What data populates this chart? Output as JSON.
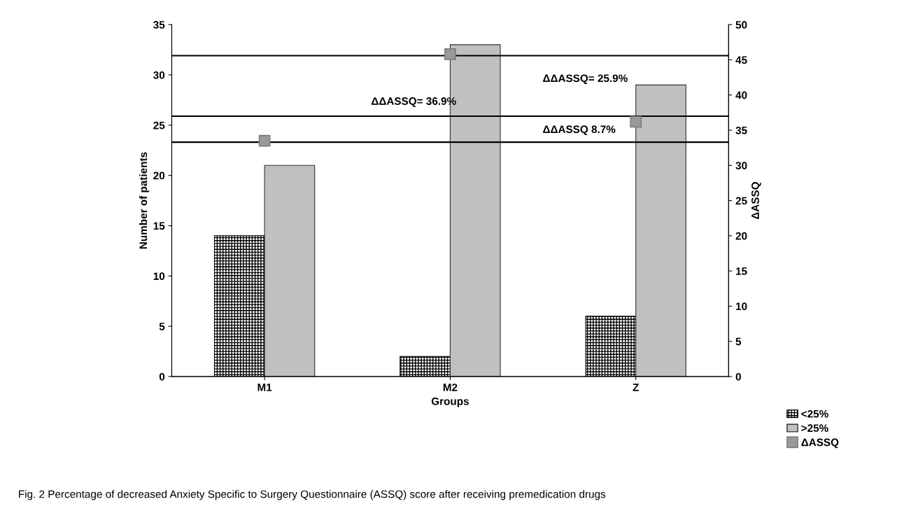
{
  "chart_data": {
    "type": "bar",
    "title": "Fig. 2 Percentage of decreased Anxiety Specific to Surgery Questionnaire (ASSQ) score after receiving premedication drugs",
    "xlabel": "Groups",
    "ylabel": "Number of patients",
    "y2label": "ΔASSQ",
    "categories": [
      "M1",
      "M2",
      "Z"
    ],
    "series": [
      {
        "name": "<25%",
        "color": "#000000",
        "values": [
          14,
          2,
          6
        ]
      },
      {
        "name": ">25%",
        "color": "#c0c0c0",
        "values": [
          21,
          33,
          29
        ]
      },
      {
        "name": "ΔASSQ",
        "type": "scatter",
        "axis": "y2",
        "color": "#999999",
        "values": [
          33.5,
          45.8,
          36.2
        ]
      }
    ],
    "ylim": [
      0,
      35
    ],
    "yticks": [
      0,
      5,
      10,
      15,
      20,
      25,
      30,
      35
    ],
    "y2lim": [
      0,
      50
    ],
    "y2ticks": [
      0,
      5,
      10,
      15,
      20,
      25,
      30,
      35,
      40,
      45,
      50
    ],
    "ref_lines": [
      {
        "axis": "y2",
        "value": 33.3
      },
      {
        "axis": "y2",
        "value": 45.6
      },
      {
        "axis": "y2",
        "value": 37.0
      }
    ],
    "annotations": [
      "ΔΔASSQ= 36.9%",
      "ΔΔASSQ= 25.9%",
      "ΔΔASSQ 8.7%"
    ],
    "marker": "square",
    "legend": "bottom right",
    "grid": false
  }
}
